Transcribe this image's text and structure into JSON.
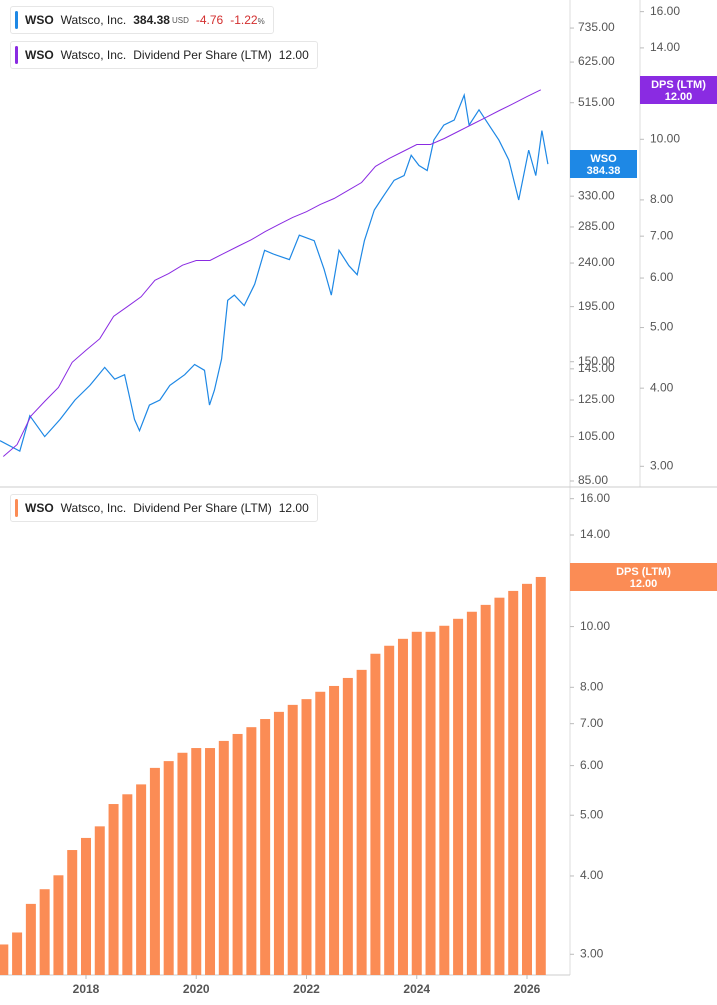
{
  "chart_data": [
    {
      "type": "line",
      "log_scale": true,
      "ticker": "WSO",
      "currency": "USD",
      "change": -4.76,
      "change_pct": {
        "value": -1.22,
        "label": "-1.22",
        "unit": "%"
      },
      "xlim": [
        2016.44,
        2026.78
      ],
      "ylim": [
        82.6,
        840
      ],
      "y2lim": [
        2.78,
        16.7
      ],
      "yticks": [
        {
          "value": 85,
          "label": "85.00"
        },
        {
          "value": 105,
          "label": "105.00"
        },
        {
          "value": 125,
          "label": "125.00"
        },
        {
          "value": 145,
          "label": "145.00"
        },
        {
          "value": 150,
          "label": "150.00"
        },
        {
          "value": 195,
          "label": "195.00"
        },
        {
          "value": 240,
          "label": "240.00"
        },
        {
          "value": 285,
          "label": "285.00"
        },
        {
          "value": 330,
          "label": "330.00"
        },
        {
          "value": 515,
          "label": "515.00"
        },
        {
          "value": 625,
          "label": "625.00"
        },
        {
          "value": 735,
          "label": "735.00"
        }
      ],
      "y2ticks": [
        {
          "value": 3,
          "label": "3.00"
        },
        {
          "value": 4,
          "label": "4.00"
        },
        {
          "value": 5,
          "label": "5.00"
        },
        {
          "value": 6,
          "label": "6.00"
        },
        {
          "value": 7,
          "label": "7.00"
        },
        {
          "value": 8,
          "label": "8.00"
        },
        {
          "value": 10,
          "label": "10.00"
        },
        {
          "value": 14,
          "label": "14.00"
        },
        {
          "value": 16,
          "label": "16.00"
        }
      ],
      "series": [
        {
          "name": "Watsco, Inc.",
          "color": "#1e88e5",
          "badge_label": "WSO",
          "x": [
            2016.44,
            2016.8,
            2016.98,
            2017.25,
            2017.53,
            2017.8,
            2018.07,
            2018.34,
            2018.52,
            2018.7,
            2018.88,
            2018.97,
            2019.15,
            2019.34,
            2019.52,
            2019.79,
            2019.97,
            2020.15,
            2020.24,
            2020.33,
            2020.46,
            2020.57,
            2020.69,
            2020.87,
            2021.06,
            2021.24,
            2021.42,
            2021.69,
            2021.87,
            2022.14,
            2022.32,
            2022.45,
            2022.59,
            2022.77,
            2022.92,
            2023.05,
            2023.23,
            2023.41,
            2023.59,
            2023.77,
            2023.9,
            2024.04,
            2024.19,
            2024.31,
            2024.49,
            2024.68,
            2024.86,
            2024.95,
            2025.13,
            2025.31,
            2025.49,
            2025.67,
            2025.85,
            2026.03,
            2026.16,
            2026.27,
            2026.38
          ],
          "values": [
            103,
            98,
            116,
            105,
            114,
            125,
            134,
            146,
            138,
            141,
            114,
            108,
            122,
            125,
            134,
            141,
            148,
            144,
            122,
            131,
            152,
            201,
            206,
            196,
            217,
            255,
            250,
            244,
            274,
            267,
            233,
            206,
            255,
            237,
            227,
            267,
            309,
            332,
            356,
            364,
            401,
            382,
            373,
            431,
            463,
            474,
            534,
            463,
            498,
            463,
            431,
            392,
            324,
            411,
            364,
            451,
            384.38
          ]
        },
        {
          "name": "Dividend Per Share (LTM)",
          "color": "#8a2be2",
          "axis": "y2",
          "badge_label": "DPS (LTM)",
          "last_value_label": "12.00",
          "x": [
            2016.5,
            2016.75,
            2017,
            2017.25,
            2017.5,
            2017.75,
            2018,
            2018.25,
            2018.5,
            2018.75,
            2019,
            2019.25,
            2019.5,
            2019.75,
            2020,
            2020.25,
            2020.5,
            2020.75,
            2021,
            2021.25,
            2021.5,
            2021.75,
            2022,
            2022.25,
            2022.5,
            2022.75,
            2023,
            2023.25,
            2023.5,
            2023.75,
            2024,
            2024.25,
            2024.5,
            2024.75,
            2025,
            2025.25,
            2025.5,
            2025.75,
            2026,
            2026.25
          ],
          "values": [
            3.11,
            3.25,
            3.61,
            3.81,
            4.01,
            4.4,
            4.6,
            4.8,
            5.21,
            5.4,
            5.6,
            5.95,
            6.1,
            6.29,
            6.4,
            6.4,
            6.57,
            6.74,
            6.91,
            7.12,
            7.31,
            7.5,
            7.66,
            7.87,
            8.04,
            8.28,
            8.53,
            9.05,
            9.32,
            9.56,
            9.81,
            9.81,
            10.03,
            10.29,
            10.56,
            10.83,
            11.12,
            11.4,
            11.7,
            12
          ]
        }
      ]
    },
    {
      "type": "bar",
      "log_scale": true,
      "ticker": "WSO",
      "company": "Watsco, Inc.",
      "xlim": [
        2016.44,
        2026.78
      ],
      "xticks": [
        2018,
        2020,
        2022,
        2024,
        2026
      ],
      "ylim": [
        2.78,
        16.7
      ],
      "yticks": [
        {
          "value": 3,
          "label": "3.00"
        },
        {
          "value": 4,
          "label": "4.00"
        },
        {
          "value": 5,
          "label": "5.00"
        },
        {
          "value": 6,
          "label": "6.00"
        },
        {
          "value": 7,
          "label": "7.00"
        },
        {
          "value": 8,
          "label": "8.00"
        },
        {
          "value": 10,
          "label": "10.00"
        },
        {
          "value": 14,
          "label": "14.00"
        },
        {
          "value": 16,
          "label": "16.00"
        }
      ],
      "series": [
        {
          "name": "Dividend Per Share (LTM)",
          "color": "#fb8c55",
          "badge_label": "DPS (LTM)",
          "last_value_label": "12.00",
          "x": [
            2016.5,
            2016.75,
            2017,
            2017.25,
            2017.5,
            2017.75,
            2018,
            2018.25,
            2018.5,
            2018.75,
            2019,
            2019.25,
            2019.5,
            2019.75,
            2020,
            2020.25,
            2020.5,
            2020.75,
            2021,
            2021.25,
            2021.5,
            2021.75,
            2022,
            2022.25,
            2022.5,
            2022.75,
            2023,
            2023.25,
            2023.5,
            2023.75,
            2024,
            2024.25,
            2024.5,
            2024.75,
            2025,
            2025.25,
            2025.5,
            2025.75,
            2026,
            2026.25
          ],
          "values": [
            3.11,
            3.25,
            3.61,
            3.81,
            4.01,
            4.4,
            4.6,
            4.8,
            5.21,
            5.4,
            5.6,
            5.95,
            6.1,
            6.29,
            6.4,
            6.4,
            6.57,
            6.74,
            6.91,
            7.12,
            7.31,
            7.5,
            7.66,
            7.87,
            8.04,
            8.28,
            8.53,
            9.05,
            9.32,
            9.56,
            9.81,
            9.81,
            10.03,
            10.29,
            10.56,
            10.83,
            11.12,
            11.4,
            11.7,
            12
          ]
        }
      ]
    }
  ]
}
